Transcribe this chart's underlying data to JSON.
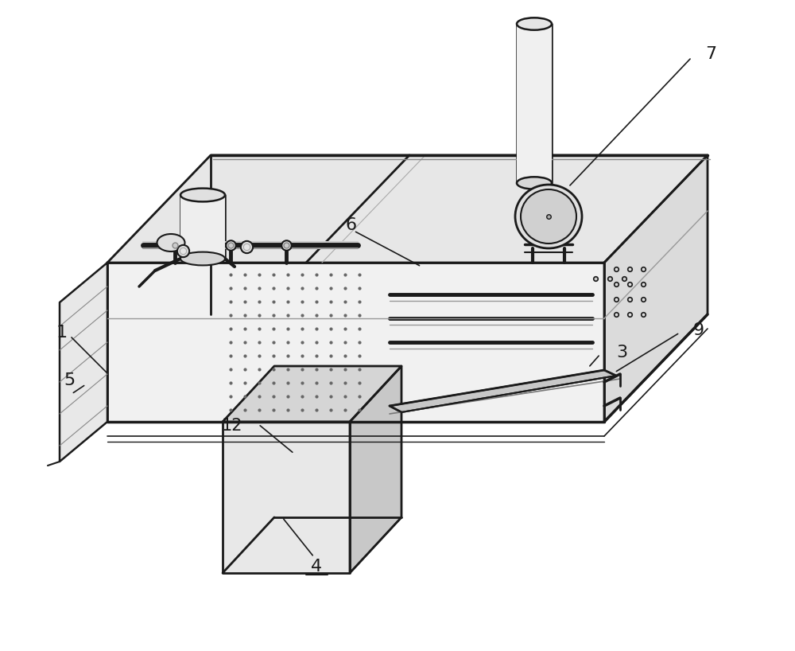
{
  "bg_color": "#ffffff",
  "line_color": "#1a1a1a",
  "fill_top": "#e8e8e8",
  "fill_front": "#f2f2f2",
  "fill_right": "#d0d0d0",
  "fill_left_panel": "#e0e0e0",
  "fill_ped_front": "#e5e5e5",
  "fill_ped_top": "#d8d8d8",
  "fill_ped_right": "#c8c8c8",
  "figsize": [
    10.0,
    8.18
  ],
  "dpi": 100
}
